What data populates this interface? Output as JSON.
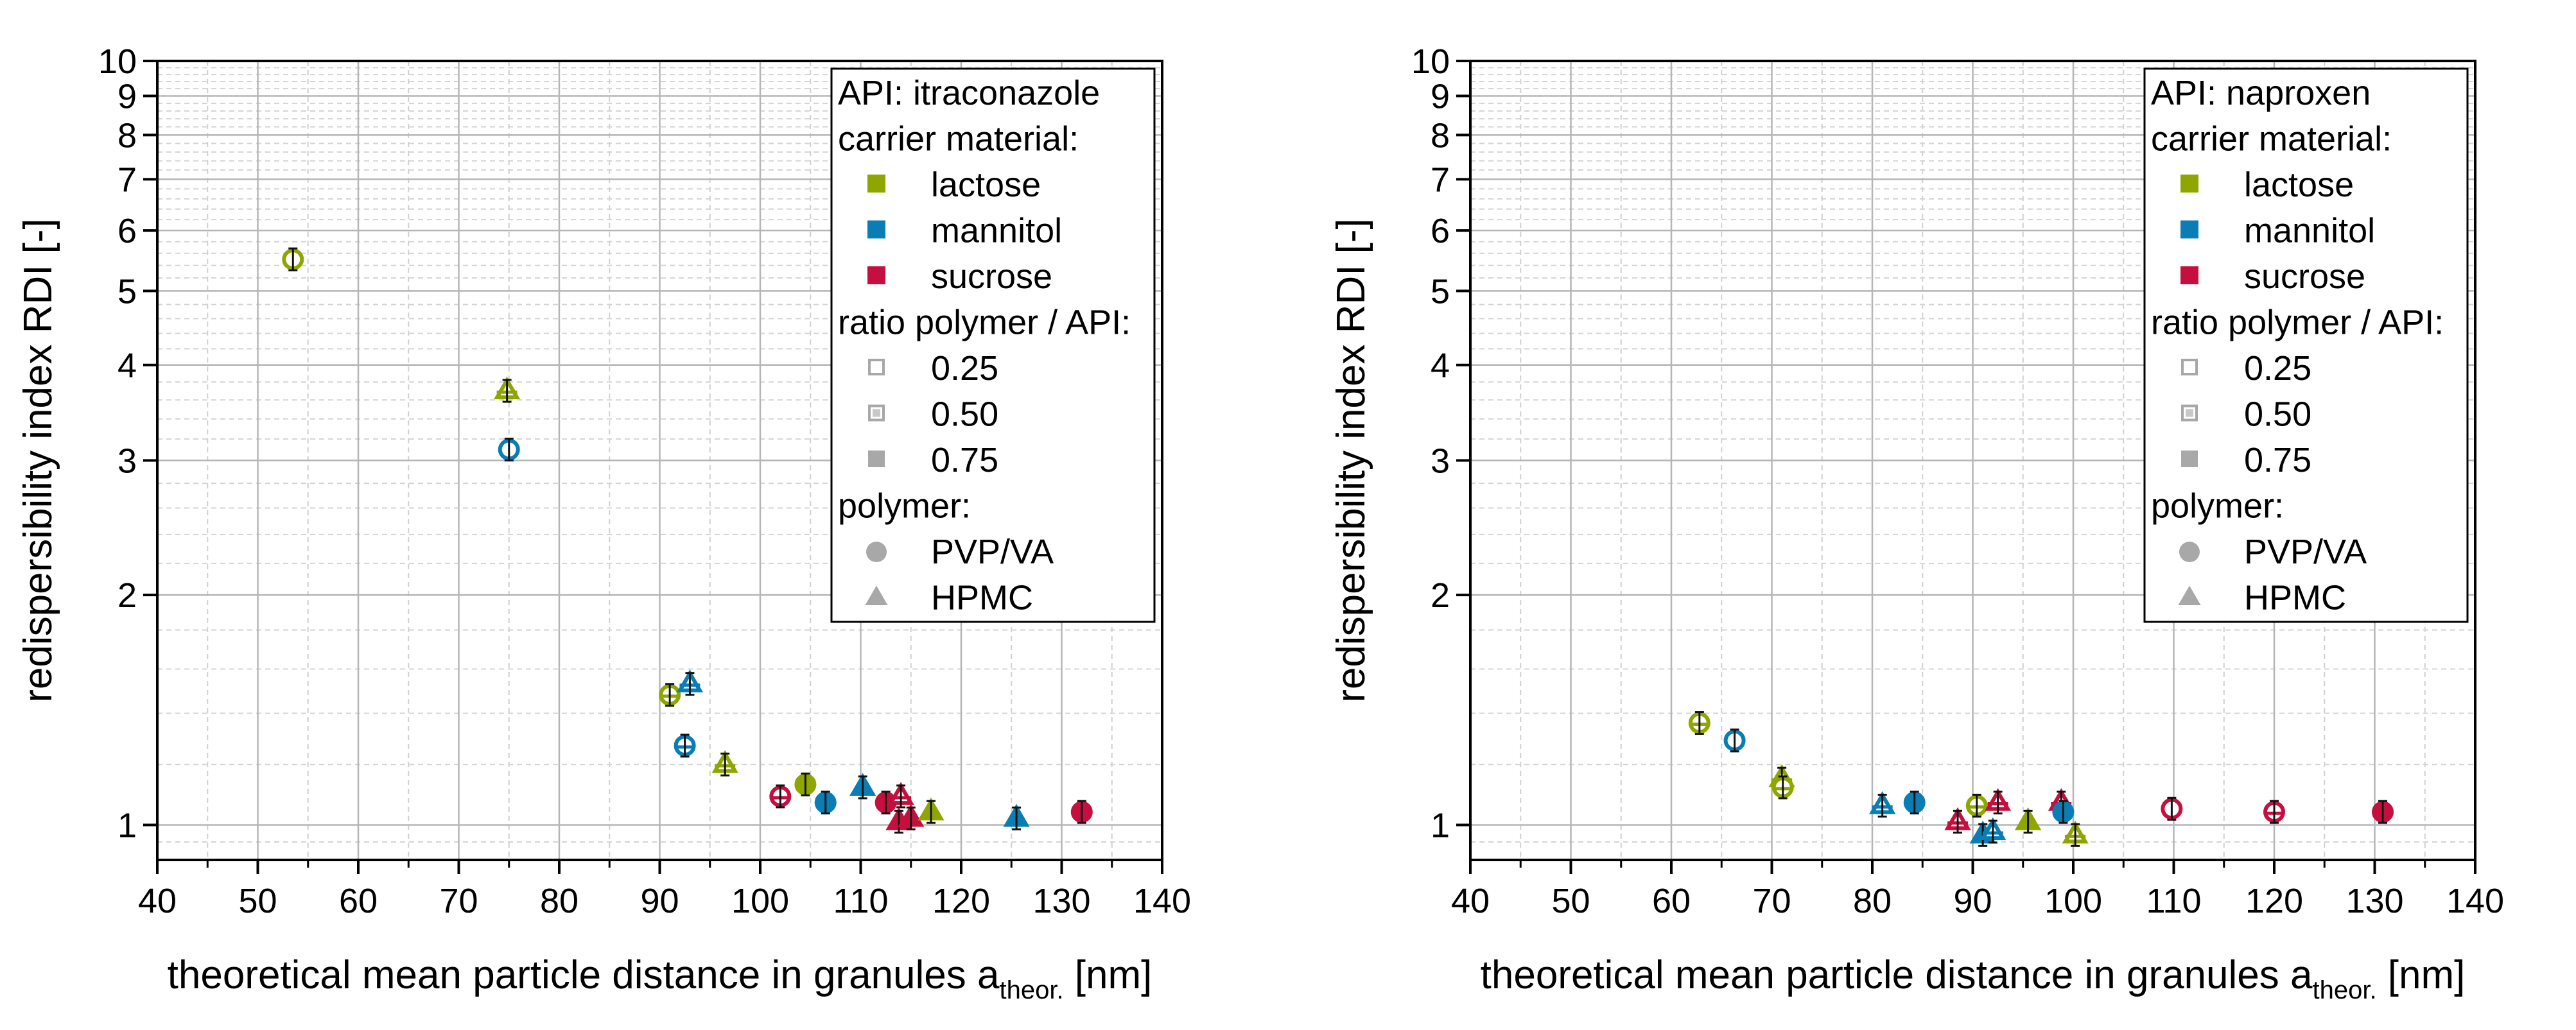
{
  "chart_data": [
    {
      "type": "scatter",
      "title": "",
      "xlabel": "theoretical mean particle distance in granules a",
      "xlabel_sub": "theor.",
      "xlabel_unit": " [nm]",
      "ylabel": "redispersibility index RDI [-]",
      "xlim": [
        40,
        140
      ],
      "ylim": [
        0.9,
        10
      ],
      "yscale": "log",
      "xticks": [
        "40",
        "50",
        "60",
        "70",
        "80",
        "90",
        "100",
        "110",
        "120",
        "130",
        "140"
      ],
      "yticks": [
        {
          "v": 1,
          "label": "1"
        },
        {
          "v": 2,
          "label": "2"
        },
        {
          "v": 3,
          "label": "3"
        },
        {
          "v": 4,
          "label": "4"
        },
        {
          "v": 5,
          "label": "5"
        },
        {
          "v": 6,
          "label": "6"
        },
        {
          "v": 7,
          "label": "7"
        },
        {
          "v": 8,
          "label": "8"
        },
        {
          "v": 9,
          "label": "9"
        },
        {
          "v": 10,
          "label": "10"
        }
      ],
      "grid": true,
      "legend_position": "top-right",
      "legend": {
        "api": "API: itraconazole",
        "carrier_title": "carrier material:",
        "carriers": [
          {
            "key": "lactose",
            "label": "lactose",
            "color": "#8fa600"
          },
          {
            "key": "mannitol",
            "label": "mannitol",
            "color": "#0a7db5"
          },
          {
            "key": "sucrose",
            "label": "sucrose",
            "color": "#c5103f"
          }
        ],
        "ratio_title": "ratio polymer / API:",
        "ratios": [
          {
            "key": "0.25",
            "label": "0.25"
          },
          {
            "key": "0.50",
            "label": "0.50"
          },
          {
            "key": "0.75",
            "label": "0.75"
          }
        ],
        "polymer_title": "polymer:",
        "polymers": [
          {
            "key": "PVP/VA",
            "label": "PVP/VA",
            "marker": "circle"
          },
          {
            "key": "HPMC",
            "label": "HPMC",
            "marker": "triangle"
          }
        ]
      },
      "points": [
        {
          "x": 53.5,
          "y": 5.5,
          "carrier": "lactose",
          "ratio": "0.25",
          "polymer": "PVP/VA"
        },
        {
          "x": 74.8,
          "y": 3.7,
          "carrier": "lactose",
          "ratio": "0.50",
          "polymer": "HPMC"
        },
        {
          "x": 75.0,
          "y": 3.1,
          "carrier": "mannitol",
          "ratio": "0.25",
          "polymer": "PVP/VA"
        },
        {
          "x": 91.0,
          "y": 1.48,
          "carrier": "lactose",
          "ratio": "0.50",
          "polymer": "PVP/VA"
        },
        {
          "x": 93.0,
          "y": 1.53,
          "carrier": "mannitol",
          "ratio": "0.50",
          "polymer": "HPMC"
        },
        {
          "x": 92.5,
          "y": 1.27,
          "carrier": "mannitol",
          "ratio": "0.50",
          "polymer": "PVP/VA"
        },
        {
          "x": 96.5,
          "y": 1.2,
          "carrier": "lactose",
          "ratio": "0.50",
          "polymer": "HPMC"
        },
        {
          "x": 102.0,
          "y": 1.09,
          "carrier": "sucrose",
          "ratio": "0.50",
          "polymer": "PVP/VA"
        },
        {
          "x": 104.5,
          "y": 1.13,
          "carrier": "lactose",
          "ratio": "0.75",
          "polymer": "PVP/VA"
        },
        {
          "x": 106.5,
          "y": 1.07,
          "carrier": "mannitol",
          "ratio": "0.75",
          "polymer": "PVP/VA"
        },
        {
          "x": 110.2,
          "y": 1.12,
          "carrier": "mannitol",
          "ratio": "0.75",
          "polymer": "HPMC"
        },
        {
          "x": 112.5,
          "y": 1.07,
          "carrier": "sucrose",
          "ratio": "0.75",
          "polymer": "PVP/VA"
        },
        {
          "x": 114.0,
          "y": 1.09,
          "carrier": "sucrose",
          "ratio": "0.50",
          "polymer": "HPMC"
        },
        {
          "x": 113.8,
          "y": 1.01,
          "carrier": "sucrose",
          "ratio": "0.75",
          "polymer": "HPMC"
        },
        {
          "x": 115.0,
          "y": 1.02,
          "carrier": "sucrose",
          "ratio": "0.75",
          "polymer": "HPMC"
        },
        {
          "x": 117.0,
          "y": 1.04,
          "carrier": "lactose",
          "ratio": "0.75",
          "polymer": "HPMC"
        },
        {
          "x": 125.5,
          "y": 1.02,
          "carrier": "mannitol",
          "ratio": "0.75",
          "polymer": "HPMC"
        },
        {
          "x": 132.0,
          "y": 1.04,
          "carrier": "sucrose",
          "ratio": "0.75",
          "polymer": "PVP/VA"
        }
      ]
    },
    {
      "type": "scatter",
      "title": "",
      "xlabel": "theoretical mean particle distance in granules a",
      "xlabel_sub": "theor.",
      "xlabel_unit": " [nm]",
      "ylabel": "redispersibility index RDI [-]",
      "xlim": [
        40,
        140
      ],
      "ylim": [
        0.9,
        10
      ],
      "yscale": "log",
      "xticks": [
        "40",
        "50",
        "60",
        "70",
        "80",
        "90",
        "100",
        "110",
        "120",
        "130",
        "140"
      ],
      "yticks": [
        {
          "v": 1,
          "label": "1"
        },
        {
          "v": 2,
          "label": "2"
        },
        {
          "v": 3,
          "label": "3"
        },
        {
          "v": 4,
          "label": "4"
        },
        {
          "v": 5,
          "label": "5"
        },
        {
          "v": 6,
          "label": "6"
        },
        {
          "v": 7,
          "label": "7"
        },
        {
          "v": 8,
          "label": "8"
        },
        {
          "v": 9,
          "label": "9"
        },
        {
          "v": 10,
          "label": "10"
        }
      ],
      "grid": true,
      "legend_position": "top-right",
      "legend": {
        "api": "API: naproxen",
        "carrier_title": "carrier material:",
        "carriers": [
          {
            "key": "lactose",
            "label": "lactose",
            "color": "#8fa600"
          },
          {
            "key": "mannitol",
            "label": "mannitol",
            "color": "#0a7db5"
          },
          {
            "key": "sucrose",
            "label": "sucrose",
            "color": "#c5103f"
          }
        ],
        "ratio_title": "ratio polymer / API:",
        "ratios": [
          {
            "key": "0.25",
            "label": "0.25"
          },
          {
            "key": "0.50",
            "label": "0.50"
          },
          {
            "key": "0.75",
            "label": "0.75"
          }
        ],
        "polymer_title": "polymer:",
        "polymers": [
          {
            "key": "PVP/VA",
            "label": "PVP/VA",
            "marker": "circle"
          },
          {
            "key": "HPMC",
            "label": "HPMC",
            "marker": "triangle"
          }
        ]
      },
      "points": [
        {
          "x": 62.8,
          "y": 1.36,
          "carrier": "lactose",
          "ratio": "0.50",
          "polymer": "PVP/VA"
        },
        {
          "x": 66.3,
          "y": 1.29,
          "carrier": "mannitol",
          "ratio": "0.25",
          "polymer": "PVP/VA"
        },
        {
          "x": 71.0,
          "y": 1.15,
          "carrier": "lactose",
          "ratio": "0.50",
          "polymer": "HPMC"
        },
        {
          "x": 71.1,
          "y": 1.12,
          "carrier": "lactose",
          "ratio": "0.50",
          "polymer": "PVP/VA"
        },
        {
          "x": 81.0,
          "y": 1.06,
          "carrier": "mannitol",
          "ratio": "0.50",
          "polymer": "HPMC"
        },
        {
          "x": 84.2,
          "y": 1.07,
          "carrier": "mannitol",
          "ratio": "0.75",
          "polymer": "PVP/VA"
        },
        {
          "x": 88.5,
          "y": 1.01,
          "carrier": "sucrose",
          "ratio": "0.50",
          "polymer": "HPMC"
        },
        {
          "x": 90.4,
          "y": 1.06,
          "carrier": "lactose",
          "ratio": "0.50",
          "polymer": "PVP/VA"
        },
        {
          "x": 91.0,
          "y": 0.97,
          "carrier": "mannitol",
          "ratio": "0.75",
          "polymer": "HPMC"
        },
        {
          "x": 92.0,
          "y": 0.98,
          "carrier": "mannitol",
          "ratio": "0.50",
          "polymer": "HPMC"
        },
        {
          "x": 92.5,
          "y": 1.07,
          "carrier": "sucrose",
          "ratio": "0.50",
          "polymer": "HPMC"
        },
        {
          "x": 95.5,
          "y": 1.01,
          "carrier": "lactose",
          "ratio": "0.75",
          "polymer": "HPMC"
        },
        {
          "x": 98.8,
          "y": 1.07,
          "carrier": "sucrose",
          "ratio": "0.50",
          "polymer": "HPMC"
        },
        {
          "x": 99.0,
          "y": 1.04,
          "carrier": "mannitol",
          "ratio": "0.75",
          "polymer": "PVP/VA"
        },
        {
          "x": 100.2,
          "y": 0.97,
          "carrier": "lactose",
          "ratio": "0.50",
          "polymer": "HPMC"
        },
        {
          "x": 109.8,
          "y": 1.05,
          "carrier": "sucrose",
          "ratio": "0.25",
          "polymer": "PVP/VA"
        },
        {
          "x": 120.0,
          "y": 1.04,
          "carrier": "sucrose",
          "ratio": "0.50",
          "polymer": "PVP/VA"
        },
        {
          "x": 130.8,
          "y": 1.04,
          "carrier": "sucrose",
          "ratio": "0.75",
          "polymer": "PVP/VA"
        }
      ]
    }
  ]
}
